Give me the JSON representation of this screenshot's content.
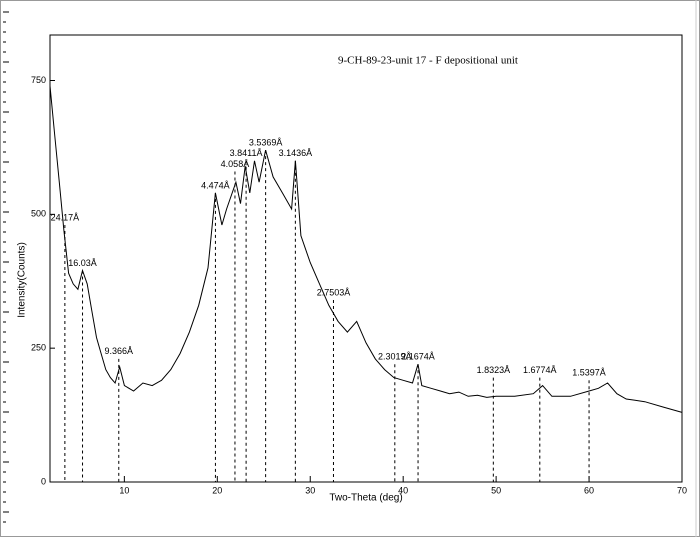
{
  "chart_data": {
    "type": "line",
    "title": "9-CH-89-23-unit 17 - F depositional unit",
    "x_label": "Two-Theta (deg)",
    "y_label": "Intensity(Counts)",
    "color": "#000000",
    "xlim": [
      2,
      70
    ],
    "ylim": [
      0,
      835
    ],
    "xticks": [
      10,
      20,
      30,
      40,
      50,
      60,
      70
    ],
    "yticks": [
      0,
      250,
      500,
      750
    ],
    "x": [
      2,
      2.5,
      3,
      3.5,
      4,
      4.5,
      5,
      5.5,
      6,
      6.5,
      7,
      7.5,
      8,
      8.5,
      9,
      9.5,
      10,
      11,
      12,
      13,
      14,
      15,
      16,
      17,
      18,
      19,
      19.8,
      20.5,
      21,
      22,
      22.5,
      23,
      23.5,
      24,
      24.5,
      25.2,
      26,
      27,
      28,
      28.4,
      29,
      30,
      31,
      32,
      33,
      34,
      35,
      36,
      37,
      38,
      39,
      40,
      41,
      41.6,
      42,
      43,
      44,
      45,
      46,
      47,
      48,
      49,
      50,
      52,
      54,
      55,
      56,
      58,
      60,
      61,
      62,
      63,
      64,
      66,
      68,
      70
    ],
    "values": [
      740,
      650,
      560,
      470,
      390,
      370,
      360,
      395,
      370,
      320,
      270,
      240,
      210,
      195,
      185,
      215,
      180,
      170,
      185,
      180,
      190,
      210,
      240,
      280,
      330,
      400,
      540,
      480,
      510,
      560,
      520,
      590,
      540,
      600,
      560,
      620,
      570,
      540,
      510,
      600,
      460,
      410,
      370,
      330,
      300,
      280,
      300,
      260,
      230,
      210,
      195,
      190,
      185,
      220,
      180,
      175,
      170,
      165,
      168,
      160,
      162,
      158,
      160,
      160,
      165,
      180,
      160,
      160,
      170,
      175,
      185,
      165,
      155,
      150,
      140,
      130
    ],
    "peaks": [
      {
        "x": 3.6,
        "intensity": 480,
        "label": "24.17Å"
      },
      {
        "x": 5.5,
        "intensity": 395,
        "label": "16.03Å"
      },
      {
        "x": 9.4,
        "intensity": 230,
        "label": "9.366Å"
      },
      {
        "x": 19.8,
        "intensity": 540,
        "label": "4.474Å"
      },
      {
        "x": 21.9,
        "intensity": 580,
        "label": "4.058Å"
      },
      {
        "x": 23.1,
        "intensity": 600,
        "label": "3.8411Å"
      },
      {
        "x": 25.2,
        "intensity": 620,
        "label": "3.5369Å"
      },
      {
        "x": 28.4,
        "intensity": 600,
        "label": "3.1436Å"
      },
      {
        "x": 32.5,
        "intensity": 340,
        "label": "2.7503Å"
      },
      {
        "x": 39.1,
        "intensity": 220,
        "label": "2.3019Å"
      },
      {
        "x": 41.6,
        "intensity": 220,
        "label": "2.1674Å"
      },
      {
        "x": 49.7,
        "intensity": 195,
        "label": "1.8323Å"
      },
      {
        "x": 54.7,
        "intensity": 195,
        "label": "1.6774Å"
      },
      {
        "x": 60.0,
        "intensity": 190,
        "label": "1.5397Å"
      }
    ]
  }
}
